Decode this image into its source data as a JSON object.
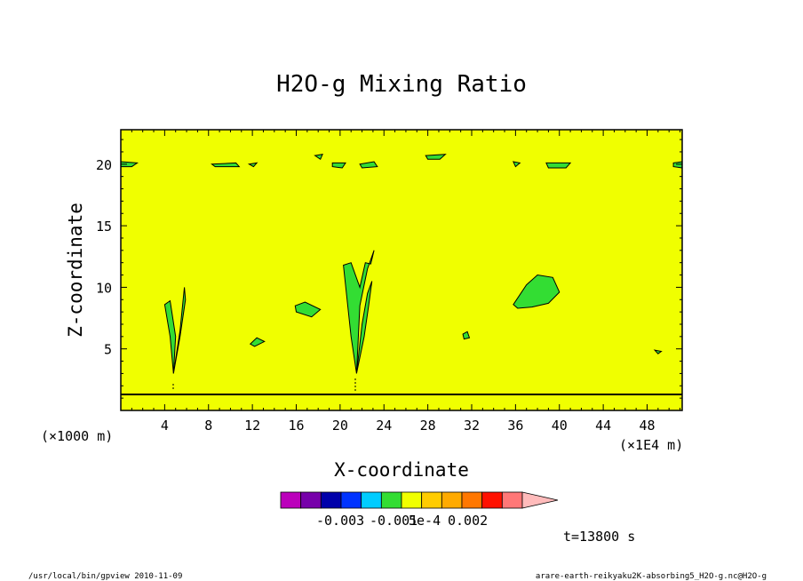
{
  "chart_data": {
    "type": "contour",
    "title": "H2O-g Mixing Ratio",
    "xlabel": "X-coordinate",
    "ylabel": "Z-coordinate",
    "x_unit_left": "(×1000 m)",
    "x_unit_right": "(×1E4 m)",
    "xlim": [
      0,
      51.2
    ],
    "ylim": [
      0,
      22.8
    ],
    "xticks": [
      4,
      8,
      12,
      16,
      20,
      24,
      28,
      32,
      36,
      40,
      44,
      48
    ],
    "yticks": [
      5,
      10,
      15,
      20
    ],
    "background_color": "#f0ff00",
    "contour_fill_color": "#33dd33",
    "time_label": "t=13800 s",
    "colorbar": {
      "colors": [
        "#bb00bb",
        "#7700aa",
        "#0000aa",
        "#0033ff",
        "#00ccff",
        "#33dd33",
        "#f0ff00",
        "#ffcc00",
        "#ffaa00",
        "#ff7700",
        "#ff1100",
        "#ff7777",
        "#ffbbbb"
      ],
      "tick_labels": [
        "-0.003",
        "-0.001",
        "5e-4",
        "0.002"
      ]
    },
    "regions": [
      {
        "name": "plume-left-a",
        "points": [
          [
            4.0,
            8.6
          ],
          [
            4.5,
            6.0
          ],
          [
            4.8,
            3.0
          ],
          [
            5.0,
            6.0
          ],
          [
            4.5,
            8.9
          ]
        ]
      },
      {
        "name": "plume-left-b",
        "points": [
          [
            4.8,
            3.0
          ],
          [
            5.4,
            6.5
          ],
          [
            5.8,
            10.0
          ],
          [
            5.9,
            9.0
          ],
          [
            5.4,
            6.0
          ]
        ]
      },
      {
        "name": "plume-center-a",
        "points": [
          [
            20.3,
            11.8
          ],
          [
            21.0,
            6.0
          ],
          [
            21.5,
            3.0
          ],
          [
            21.8,
            8.5
          ],
          [
            22.5,
            11.5
          ],
          [
            23.1,
            13.0
          ],
          [
            22.8,
            11.9
          ],
          [
            22.3,
            12.0
          ],
          [
            21.8,
            10.0
          ],
          [
            21.0,
            12.0
          ]
        ]
      },
      {
        "name": "plume-center-b",
        "points": [
          [
            21.5,
            3.0
          ],
          [
            22.0,
            7.0
          ],
          [
            22.5,
            9.5
          ],
          [
            22.9,
            10.5
          ],
          [
            22.6,
            8.5
          ],
          [
            22.2,
            6.0
          ]
        ]
      },
      {
        "name": "blob-16-8",
        "points": [
          [
            15.9,
            8.5
          ],
          [
            16.8,
            8.8
          ],
          [
            18.2,
            8.2
          ],
          [
            17.4,
            7.6
          ],
          [
            16.0,
            8.0
          ]
        ]
      },
      {
        "name": "blob-12-5",
        "points": [
          [
            11.8,
            5.4
          ],
          [
            12.4,
            5.9
          ],
          [
            13.1,
            5.6
          ],
          [
            12.2,
            5.2
          ]
        ]
      },
      {
        "name": "blob-38-10",
        "points": [
          [
            35.8,
            8.6
          ],
          [
            37.0,
            10.2
          ],
          [
            38.0,
            11.0
          ],
          [
            39.4,
            10.8
          ],
          [
            40.0,
            9.6
          ],
          [
            39.0,
            8.7
          ],
          [
            37.5,
            8.4
          ],
          [
            36.2,
            8.3
          ]
        ]
      },
      {
        "name": "blob-31-6",
        "points": [
          [
            31.2,
            6.2
          ],
          [
            31.6,
            6.4
          ],
          [
            31.8,
            5.9
          ],
          [
            31.3,
            5.8
          ]
        ]
      },
      {
        "name": "blob-49-5",
        "points": [
          [
            48.7,
            4.9
          ],
          [
            49.3,
            4.8
          ],
          [
            49.0,
            4.6
          ]
        ]
      },
      {
        "name": "band-0",
        "points": [
          [
            0.0,
            20.2
          ],
          [
            1.5,
            20.1
          ],
          [
            1.0,
            19.8
          ],
          [
            0.0,
            19.8
          ]
        ]
      },
      {
        "name": "band-9",
        "points": [
          [
            8.3,
            20.0
          ],
          [
            10.5,
            20.1
          ],
          [
            10.8,
            19.8
          ],
          [
            8.6,
            19.8
          ]
        ]
      },
      {
        "name": "band-12",
        "points": [
          [
            11.7,
            20.0
          ],
          [
            12.4,
            20.1
          ],
          [
            12.1,
            19.8
          ]
        ]
      },
      {
        "name": "band-18",
        "points": [
          [
            17.7,
            20.7
          ],
          [
            18.4,
            20.8
          ],
          [
            18.2,
            20.4
          ]
        ]
      },
      {
        "name": "band-19",
        "points": [
          [
            19.3,
            20.1
          ],
          [
            20.5,
            20.1
          ],
          [
            20.2,
            19.7
          ],
          [
            19.3,
            19.8
          ]
        ]
      },
      {
        "name": "band-22",
        "points": [
          [
            21.8,
            20.0
          ],
          [
            23.1,
            20.2
          ],
          [
            23.4,
            19.8
          ],
          [
            22.0,
            19.7
          ]
        ]
      },
      {
        "name": "band-28",
        "points": [
          [
            27.8,
            20.7
          ],
          [
            29.6,
            20.8
          ],
          [
            29.1,
            20.4
          ],
          [
            28.0,
            20.4
          ]
        ]
      },
      {
        "name": "band-36",
        "points": [
          [
            35.8,
            20.2
          ],
          [
            36.4,
            20.1
          ],
          [
            36.0,
            19.8
          ]
        ]
      },
      {
        "name": "band-39",
        "points": [
          [
            38.8,
            20.1
          ],
          [
            41.0,
            20.1
          ],
          [
            40.6,
            19.7
          ],
          [
            39.0,
            19.7
          ]
        ]
      },
      {
        "name": "band-51",
        "points": [
          [
            50.4,
            20.1
          ],
          [
            51.2,
            20.2
          ],
          [
            51.2,
            19.7
          ],
          [
            50.4,
            19.8
          ]
        ]
      }
    ]
  },
  "footer": {
    "left": "/usr/local/bin/gpview  2010-11-09",
    "right": "arare-earth-reikyaku2K-absorbing5_H2O-g.nc@H2O-g"
  }
}
